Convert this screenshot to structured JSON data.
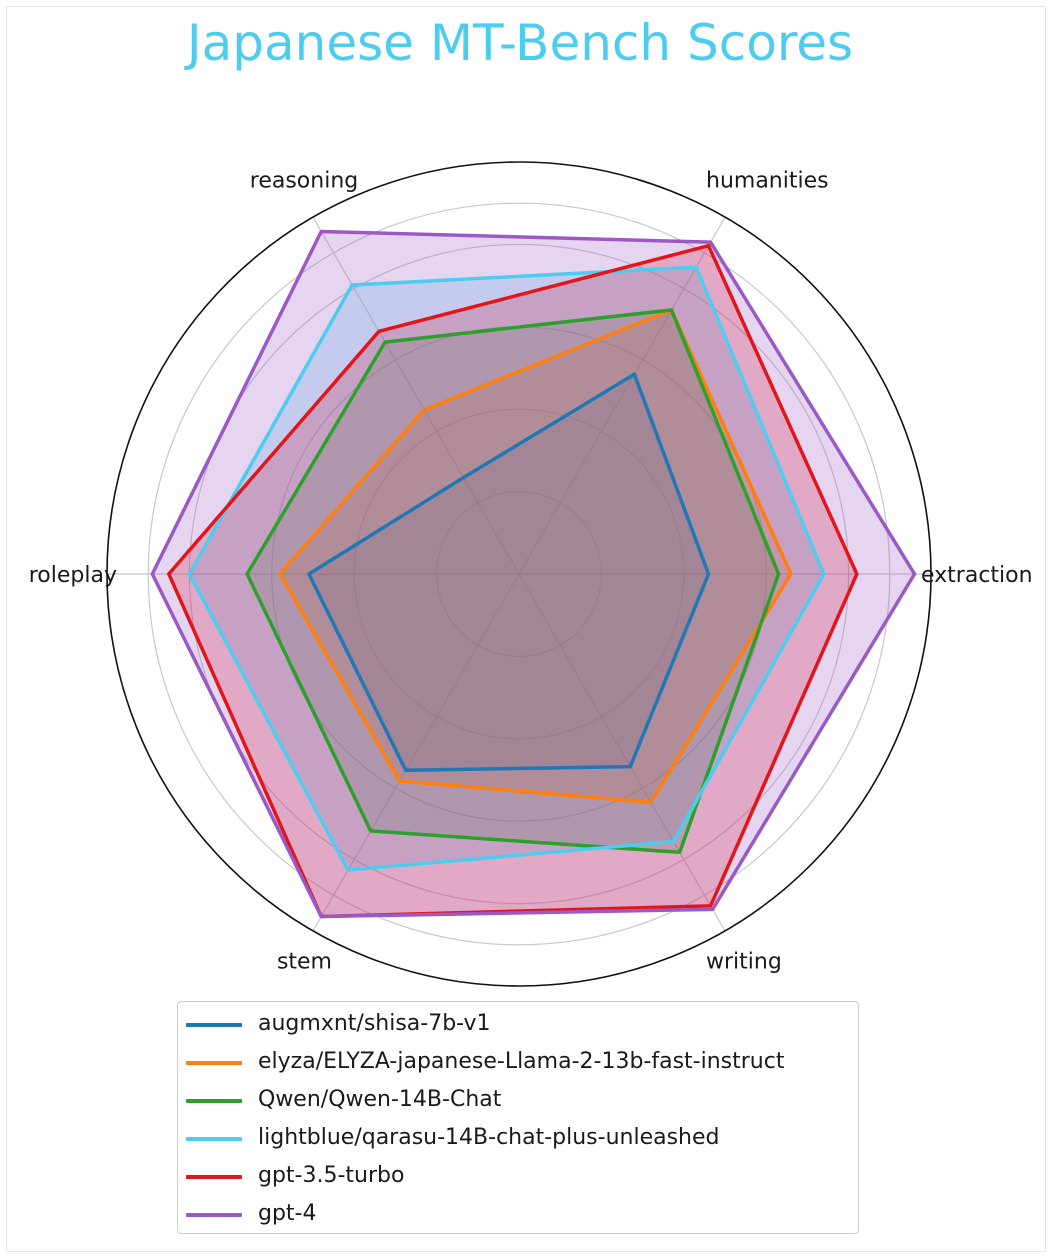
{
  "chart_data": {
    "type": "radar",
    "title": "Japanese MT-Bench Scores",
    "categories": [
      "extraction",
      "humanities",
      "reasoning",
      "roleplay",
      "stem",
      "writing"
    ],
    "rlim": [
      0,
      10
    ],
    "grid": true,
    "legend": "bottom",
    "series": [
      {
        "name": "augmxnt/shisa-7b-v1",
        "color": "#1f77b4",
        "values": [
          4.6,
          5.6,
          2.7,
          5.1,
          5.5,
          5.4
        ]
      },
      {
        "name": "elyza/ELYZA-japanese-Llama-2-13b-fast-instruct",
        "color": "#ff7f0e",
        "values": [
          6.6,
          7.4,
          4.6,
          5.8,
          5.8,
          6.4
        ]
      },
      {
        "name": "Qwen/Qwen-14B-Chat",
        "color": "#2ca02c",
        "values": [
          6.3,
          7.4,
          6.5,
          6.6,
          7.2,
          7.8
        ]
      },
      {
        "name": "lightblue/qarasu-14B-chat-plus-unleashed",
        "color": "#4ccdf0",
        "values": [
          7.4,
          8.6,
          8.1,
          8.0,
          8.3,
          7.5
        ]
      },
      {
        "name": "gpt-3.5-turbo",
        "color": "#e3151a",
        "values": [
          8.2,
          9.2,
          6.8,
          8.5,
          9.6,
          9.3
        ]
      },
      {
        "name": "gpt-4",
        "color": "#9b59c6",
        "values": [
          9.6,
          9.3,
          9.6,
          8.9,
          9.6,
          9.4
        ]
      }
    ]
  }
}
